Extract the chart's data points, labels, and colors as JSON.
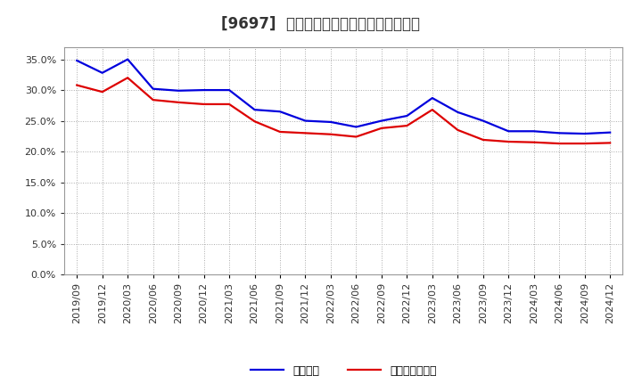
{
  "title": "[9697]  固定比率、固定長期適合率の推移",
  "labels": [
    "2019/09",
    "2019/12",
    "2020/03",
    "2020/06",
    "2020/09",
    "2020/12",
    "2021/03",
    "2021/06",
    "2021/09",
    "2021/12",
    "2022/03",
    "2022/06",
    "2022/09",
    "2022/12",
    "2023/03",
    "2023/06",
    "2023/09",
    "2023/12",
    "2024/03",
    "2024/06",
    "2024/09",
    "2024/12"
  ],
  "fixed_ratio": [
    0.348,
    0.328,
    0.35,
    0.302,
    0.299,
    0.3,
    0.3,
    0.268,
    0.265,
    0.25,
    0.248,
    0.24,
    0.25,
    0.258,
    0.287,
    0.264,
    0.25,
    0.233,
    0.233,
    0.23,
    0.229,
    0.231
  ],
  "fixed_long_ratio": [
    0.308,
    0.297,
    0.32,
    0.284,
    0.28,
    0.277,
    0.277,
    0.249,
    0.232,
    0.23,
    0.228,
    0.224,
    0.238,
    0.242,
    0.268,
    0.235,
    0.219,
    0.216,
    0.215,
    0.213,
    0.213,
    0.214
  ],
  "blue_color": "#0000dd",
  "red_color": "#dd0000",
  "background_color": "#ffffff",
  "plot_bg_color": "#ffffff",
  "grid_color": "#aaaaaa",
  "ylim_min": 0.0,
  "ylim_max": 0.37,
  "yticks": [
    0.0,
    0.05,
    0.1,
    0.15,
    0.2,
    0.25,
    0.3,
    0.35
  ],
  "legend_blue": "固定比率",
  "legend_red": "固定長期適合率",
  "title_fontsize": 12,
  "axis_fontsize": 8,
  "legend_fontsize": 9,
  "line_width": 1.6,
  "title_color": "#333333",
  "tick_color": "#333333"
}
